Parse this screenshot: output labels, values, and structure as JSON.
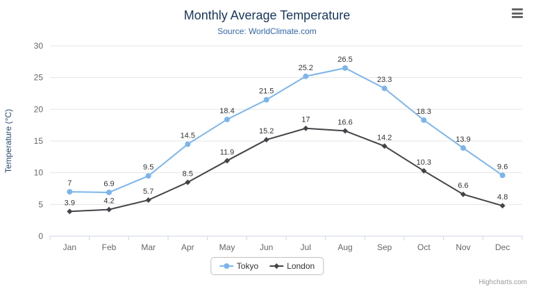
{
  "header": {
    "title": "Monthly Average Temperature",
    "subtitle": "Source: WorldClimate.com"
  },
  "menu": {
    "icon": "hamburger-menu-icon"
  },
  "credits": {
    "label": "Highcharts.com"
  },
  "colors": {
    "tokyo": "#7cb5ec",
    "london": "#434348",
    "title_text": "#16365c",
    "subtitle_text": "#3366aa",
    "axis_label": "#666666",
    "grid_line": "#e6e6e6",
    "axis_line": "#ccd6eb",
    "data_label": "#333333"
  },
  "chart_data": {
    "type": "line",
    "title": "Monthly Average Temperature",
    "subtitle": "Source: WorldClimate.com",
    "categories": [
      "Jan",
      "Feb",
      "Mar",
      "Apr",
      "May",
      "Jun",
      "Jul",
      "Aug",
      "Sep",
      "Oct",
      "Nov",
      "Dec"
    ],
    "series": [
      {
        "name": "Tokyo",
        "marker": "circle",
        "color": "#7cb5ec",
        "values": [
          7,
          6.9,
          9.5,
          14.5,
          18.4,
          21.5,
          25.2,
          26.5,
          23.3,
          18.3,
          13.9,
          9.6
        ]
      },
      {
        "name": "London",
        "marker": "diamond",
        "color": "#434348",
        "values": [
          3.9,
          4.2,
          5.7,
          8.5,
          11.9,
          15.2,
          17,
          16.6,
          14.2,
          10.3,
          6.6,
          4.8
        ]
      }
    ],
    "xlabel": "",
    "ylabel": "Temperature (°C)",
    "ylim": [
      0,
      30
    ],
    "ytick_interval": 5,
    "grid": true,
    "legend_position": "bottom",
    "data_labels": true
  }
}
